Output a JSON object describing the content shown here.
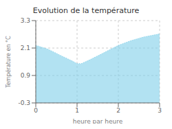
{
  "chart_data": {
    "type": "area",
    "title": "Evolution de la température",
    "xlabel": "heure par heure",
    "ylabel": "Température en °C",
    "x": [
      0,
      0.3,
      0.6,
      0.9,
      1.0,
      1.1,
      1.3,
      1.6,
      2.0,
      2.3,
      2.6,
      3.0
    ],
    "values": [
      2.22,
      2.05,
      1.78,
      1.52,
      1.42,
      1.42,
      1.58,
      1.85,
      2.22,
      2.42,
      2.58,
      2.72
    ],
    "color": "#7ecfea",
    "line_style": "dotted",
    "xlim": [
      0,
      3
    ],
    "ylim": [
      -0.3,
      3.3
    ],
    "xticks": [
      0,
      1,
      2,
      3
    ],
    "yticks": [
      -0.3,
      0.9,
      2.1,
      3.3
    ],
    "grid": true
  }
}
